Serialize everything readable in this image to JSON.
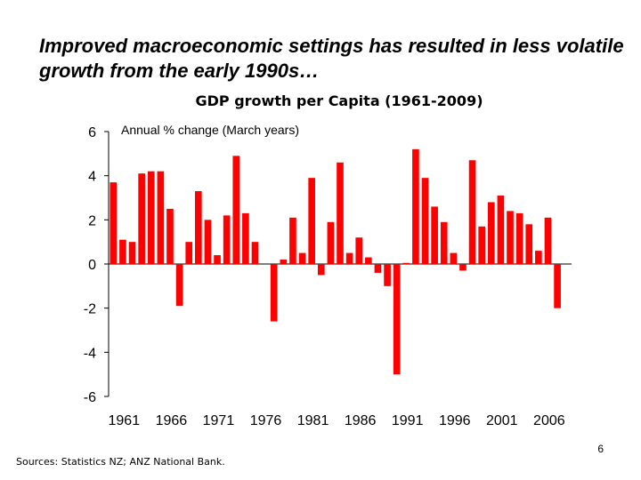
{
  "slide": {
    "headline": "Improved macroeconomic settings has resulted in less volatile growth from the early 1990s…",
    "source": "Sources:  Statistics NZ; ANZ National Bank.",
    "page_number": "6"
  },
  "chart_data": {
    "type": "bar",
    "title": "GDP growth per Capita (1961-2009)",
    "subtitle": "Annual % change (March years)",
    "xlabel": "",
    "ylabel": "",
    "ylim": [
      -6,
      6
    ],
    "yticks": [
      6,
      4,
      2,
      0,
      -2,
      -4,
      -6
    ],
    "xtick_labels": [
      "1961",
      "1966",
      "1971",
      "1976",
      "1981",
      "1986",
      "1991",
      "1996",
      "2001",
      "2006"
    ],
    "bar_color": "#ff0000",
    "grid": false,
    "categories": [
      "1961",
      "1962",
      "1963",
      "1964",
      "1965",
      "1966",
      "1967",
      "1968",
      "1969",
      "1970",
      "1971",
      "1972",
      "1973",
      "1974",
      "1975",
      "1976",
      "1977",
      "1978",
      "1979",
      "1980",
      "1981",
      "1982",
      "1983",
      "1984",
      "1985",
      "1986",
      "1987",
      "1988",
      "1989",
      "1990",
      "1991",
      "1992",
      "1993",
      "1994",
      "1995",
      "1996",
      "1997",
      "1998",
      "1999",
      "2000",
      "2001",
      "2002",
      "2003",
      "2004",
      "2005",
      "2006",
      "2007",
      "2008",
      "2009"
    ],
    "values": [
      3.7,
      1.1,
      1.0,
      4.1,
      4.2,
      4.2,
      2.5,
      -1.9,
      1.0,
      3.3,
      2.0,
      0.4,
      2.2,
      4.9,
      2.3,
      1.0,
      0.0,
      -2.6,
      0.2,
      2.1,
      0.5,
      3.9,
      -0.5,
      1.9,
      4.6,
      0.5,
      1.2,
      0.3,
      -0.4,
      -1.0,
      -5.0,
      0.05,
      5.2,
      3.9,
      2.6,
      1.9,
      0.5,
      -0.3,
      4.7,
      1.7,
      2.8,
      3.1,
      2.4,
      2.3,
      1.8,
      0.6,
      2.1,
      -2.0,
      0.0
    ]
  }
}
